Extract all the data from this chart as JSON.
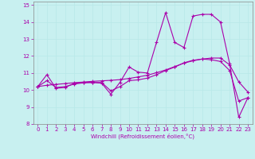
{
  "xlabel": "Windchill (Refroidissement éolien,°C)",
  "bg_color": "#c8f0f0",
  "line_color": "#aa00aa",
  "grid_color": "#b8e8e8",
  "spine_color": "#888888",
  "xlim": [
    -0.5,
    23.5
  ],
  "ylim": [
    8,
    15.2
  ],
  "xticks": [
    0,
    1,
    2,
    3,
    4,
    5,
    6,
    7,
    8,
    9,
    10,
    11,
    12,
    13,
    14,
    15,
    16,
    17,
    18,
    19,
    20,
    21,
    22,
    23
  ],
  "yticks": [
    8,
    9,
    10,
    11,
    12,
    13,
    14,
    15
  ],
  "y_jagged": [
    10.2,
    10.9,
    10.1,
    10.15,
    10.4,
    10.45,
    10.45,
    10.4,
    9.75,
    10.45,
    11.35,
    11.05,
    11.0,
    12.8,
    14.55,
    12.8,
    12.5,
    14.35,
    14.45,
    14.45,
    14.0,
    11.55,
    8.4,
    9.55
  ],
  "y_smooth": [
    10.2,
    10.55,
    10.15,
    10.2,
    10.35,
    10.42,
    10.44,
    10.44,
    9.95,
    10.2,
    10.55,
    10.6,
    10.7,
    10.9,
    11.15,
    11.35,
    11.6,
    11.75,
    11.82,
    11.78,
    11.68,
    11.15,
    9.35,
    9.55
  ],
  "y_trend": [
    10.2,
    10.28,
    10.33,
    10.38,
    10.43,
    10.47,
    10.51,
    10.54,
    10.57,
    10.61,
    10.68,
    10.77,
    10.87,
    11.02,
    11.18,
    11.38,
    11.58,
    11.72,
    11.82,
    11.88,
    11.88,
    11.48,
    10.48,
    9.88
  ],
  "tick_fontsize": 5,
  "xlabel_fontsize": 5,
  "marker_size": 3,
  "linewidth": 0.8
}
